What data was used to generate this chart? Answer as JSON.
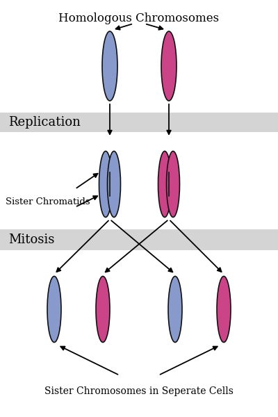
{
  "title": "Homologous Chromosomes",
  "bg_color": "#ffffff",
  "blue_fill": "#8899cc",
  "pink_fill": "#cc4488",
  "band_color": "#d4d4d4",
  "band_label_replication": "Replication",
  "band_label_mitosis": "Mitosis",
  "label_sister_chromatids": "Sister Chromatids",
  "label_bottom": "Sister Chromosomes in Seperate Cells",
  "ec": "#111111",
  "arrow_lw": 1.3,
  "font_family": "DejaVu Serif"
}
